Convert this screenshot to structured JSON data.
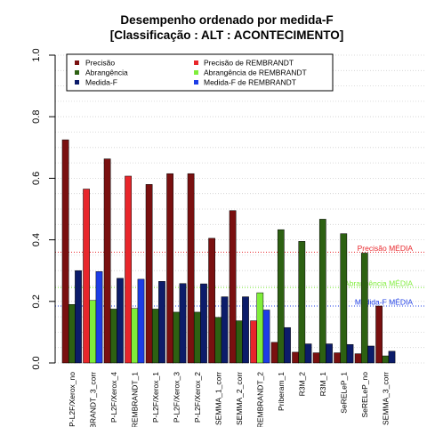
{
  "chart_data": {
    "type": "bar",
    "title_line1": "Desempenho ordenado por medida-F",
    "title_line2": "[Classificação : ALT : ACONTECIMENTO]",
    "xlabel": "",
    "ylabel": "",
    "ylim": [
      0,
      1
    ],
    "yticks": [
      "0.0",
      "0.2",
      "0.4",
      "0.6",
      "0.8",
      "1.0"
    ],
    "grid": "horizontal dotted",
    "legend_position": "top",
    "categories": [
      "P-L2F/Xerox_no",
      "REMBRANDT_3_corr",
      "P-L2F/Xerox_4",
      "REMBRANDT_1",
      "P-L2F/Xerox_1",
      "P-L2F/Xerox_3",
      "P-L2F/Xerox_2",
      "SEMMA_1_corr",
      "SEMMA_2_corr",
      "REMBRANDT_2",
      "Priberam_1",
      "R3M_2",
      "R3M_1",
      "SeRELeP_1",
      "SeRELeP_no",
      "SEMMA_3_corr"
    ],
    "rembrandt_flags": [
      false,
      true,
      false,
      true,
      false,
      false,
      false,
      false,
      false,
      true,
      false,
      false,
      false,
      false,
      false,
      false
    ],
    "series": [
      {
        "name": "Precisão",
        "rembrandt_name": "Precisão  de  REMBRANDT",
        "color": "#7a1010",
        "rembrandt_color": "#e8262b",
        "values": [
          0.725,
          0.565,
          0.663,
          0.607,
          0.58,
          0.615,
          0.615,
          0.405,
          0.495,
          0.137,
          0.067,
          0.035,
          0.033,
          0.033,
          0.03,
          0.185
        ]
      },
      {
        "name": "Abrangência",
        "rembrandt_name": "Abrangência  de  REMBRANDT",
        "color": "#2d6112",
        "rembrandt_color": "#7fee3a",
        "values": [
          0.19,
          0.203,
          0.175,
          0.177,
          0.175,
          0.165,
          0.165,
          0.148,
          0.137,
          0.228,
          0.433,
          0.395,
          0.467,
          0.42,
          0.357,
          0.023
        ]
      },
      {
        "name": "Medida-F",
        "rembrandt_name": "Medida-F  de  REMBRANDT",
        "color": "#0c1c6a",
        "rembrandt_color": "#1d3de6",
        "values": [
          0.3,
          0.297,
          0.275,
          0.272,
          0.265,
          0.258,
          0.257,
          0.215,
          0.215,
          0.172,
          0.115,
          0.062,
          0.062,
          0.06,
          0.055,
          0.038
        ]
      }
    ],
    "reference_lines": [
      {
        "label": "Precisão MÉDIA",
        "value": 0.36,
        "color": "#e8262b"
      },
      {
        "label": "Abrangência MÉDIA",
        "value": 0.245,
        "color": "#7fee3a"
      },
      {
        "label": "Medida-F MÉDIA",
        "value": 0.185,
        "color": "#1d3de6"
      }
    ]
  }
}
